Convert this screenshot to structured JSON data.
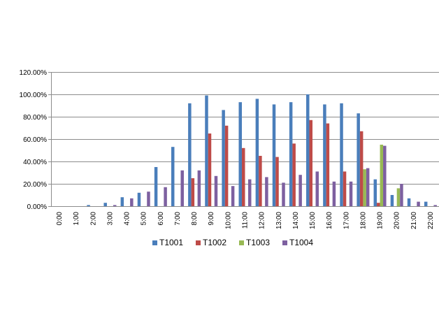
{
  "chart_data": {
    "type": "bar",
    "title": "",
    "xlabel": "",
    "ylabel": "",
    "ylim": [
      0,
      1.2
    ],
    "y_ticks": [
      0,
      0.2,
      0.4,
      0.6,
      0.8,
      1.0,
      1.2
    ],
    "y_tick_labels": [
      "0.00%",
      "20.00%",
      "40.00%",
      "60.00%",
      "80.00%",
      "100.00%",
      "120.00%"
    ],
    "grid": true,
    "legend_position": "bottom",
    "categories": [
      "0:00",
      "1:00",
      "2:00",
      "3:00",
      "4:00",
      "5:00",
      "6:00",
      "7:00",
      "8:00",
      "9:00",
      "10:00",
      "11:00",
      "12:00",
      "13:00",
      "14:00",
      "15:00",
      "16:00",
      "17:00",
      "18:00",
      "19:00",
      "20:00",
      "21:00",
      "22:00"
    ],
    "series": [
      {
        "name": "T1001",
        "color": "#4A7EBB",
        "values": [
          0,
          0,
          0.01,
          0.03,
          0.08,
          0.12,
          0.35,
          0.53,
          0.92,
          0.99,
          0.86,
          0.93,
          0.96,
          0.91,
          0.93,
          1.0,
          0.91,
          0.92,
          0.83,
          0.24,
          0.1,
          0.07,
          0.04
        ]
      },
      {
        "name": "T1002",
        "color": "#BE4B48",
        "values": [
          0,
          0,
          0,
          0,
          0,
          0,
          0,
          0,
          0.25,
          0.65,
          0.72,
          0.52,
          0.45,
          0.44,
          0.56,
          0.77,
          0.74,
          0.31,
          0.67,
          0.03,
          0,
          0,
          0
        ]
      },
      {
        "name": "T1003",
        "color": "#98B954",
        "values": [
          0,
          0,
          0,
          0,
          0,
          0,
          0,
          0,
          0,
          0,
          0,
          0,
          0,
          0,
          0,
          0,
          0,
          0,
          0.33,
          0.55,
          0.16,
          0,
          0
        ]
      },
      {
        "name": "T1004",
        "color": "#7D60A0",
        "values": [
          0,
          0,
          0,
          0.01,
          0.07,
          0.13,
          0.17,
          0.32,
          0.32,
          0.27,
          0.18,
          0.24,
          0.26,
          0.21,
          0.28,
          0.31,
          0.22,
          0.22,
          0.34,
          0.54,
          0.2,
          0.04,
          0.01
        ]
      }
    ]
  }
}
